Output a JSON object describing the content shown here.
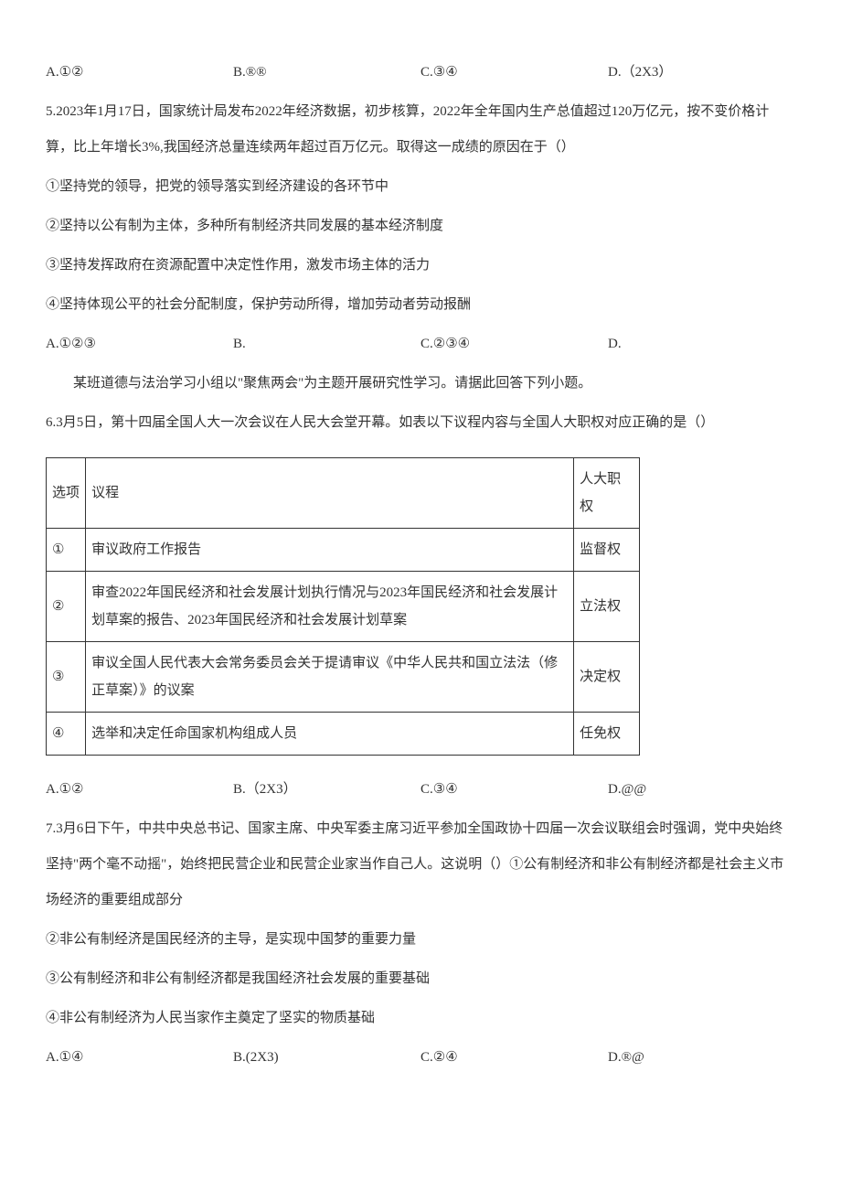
{
  "q4": {
    "options": {
      "a": "A.①②",
      "b": "B.®®",
      "c": "C.③④",
      "d": "D.（2X3）"
    }
  },
  "q5": {
    "stem": "5.2023年1月17日，国家统计局发布2022年经济数据，初步核算，2022年全年国内生产总值超过120万亿元，按不变价格计算，比上年增长3%,我国经济总量连续两年超过百万亿元。取得这一成绩的原因在于（）",
    "items": {
      "p1": "①坚持党的领导，把党的领导落实到经济建设的各环节中",
      "p2": "②坚持以公有制为主体，多种所有制经济共同发展的基本经济制度",
      "p3": "③坚持发挥政府在资源配置中决定性作用，激发市场主体的活力",
      "p4": "④坚持体现公平的社会分配制度，保护劳动所得，增加劳动者劳动报酬"
    },
    "options": {
      "a": "A.①②③",
      "b": "B.",
      "c": "C.②③④",
      "d": "D."
    }
  },
  "context": "某班道德与法治学习小组以\"聚焦两会\"为主题开展研究性学习。请据此回答下列小题。",
  "q6": {
    "stem": "6.3月5日，第十四届全国人大一次会议在人民大会堂开幕。如表以下议程内容与全国人大职权对应正确的是（）",
    "header": {
      "c1": "选项",
      "c2": "议程",
      "c3": "人大职权"
    },
    "rows": [
      {
        "sel": "①",
        "agenda": "审议政府工作报告",
        "power": "监督权"
      },
      {
        "sel": "②",
        "agenda": "审查2022年国民经济和社会发展计划执行情况与2023年国民经济和社会发展计划草案的报告、2023年国民经济和社会发展计划草案",
        "power": "立法权"
      },
      {
        "sel": "③",
        "agenda": "审议全国人民代表大会常务委员会关于提请审议《中华人民共和国立法法（修正草案）》的议案",
        "power": "决定权"
      },
      {
        "sel": "④",
        "agenda": "选举和决定任命国家机构组成人员",
        "power": "任免权"
      }
    ],
    "options": {
      "a": "A.①②",
      "b": "B.（2X3）",
      "c": "C.③④",
      "d": "D.@@"
    }
  },
  "q7": {
    "stem": "7.3月6日下午，中共中央总书记、国家主席、中央军委主席习近平参加全国政协十四届一次会议联组会时强调，党中央始终坚持\"两个毫不动摇\"，始终把民营企业和民营企业家当作自己人。这说明（）①公有制经济和非公有制经济都是社会主义市场经济的重要组成部分",
    "items": {
      "p2": "②非公有制经济是国民经济的主导，是实现中国梦的重要力量",
      "p3": "③公有制经济和非公有制经济都是我国经济社会发展的重要基础",
      "p4": "④非公有制经济为人民当家作主奠定了坚实的物质基础"
    },
    "options": {
      "a": "A.①④",
      "b": "B.(2X3)",
      "c": "C.②④",
      "d": "D.®@"
    }
  }
}
